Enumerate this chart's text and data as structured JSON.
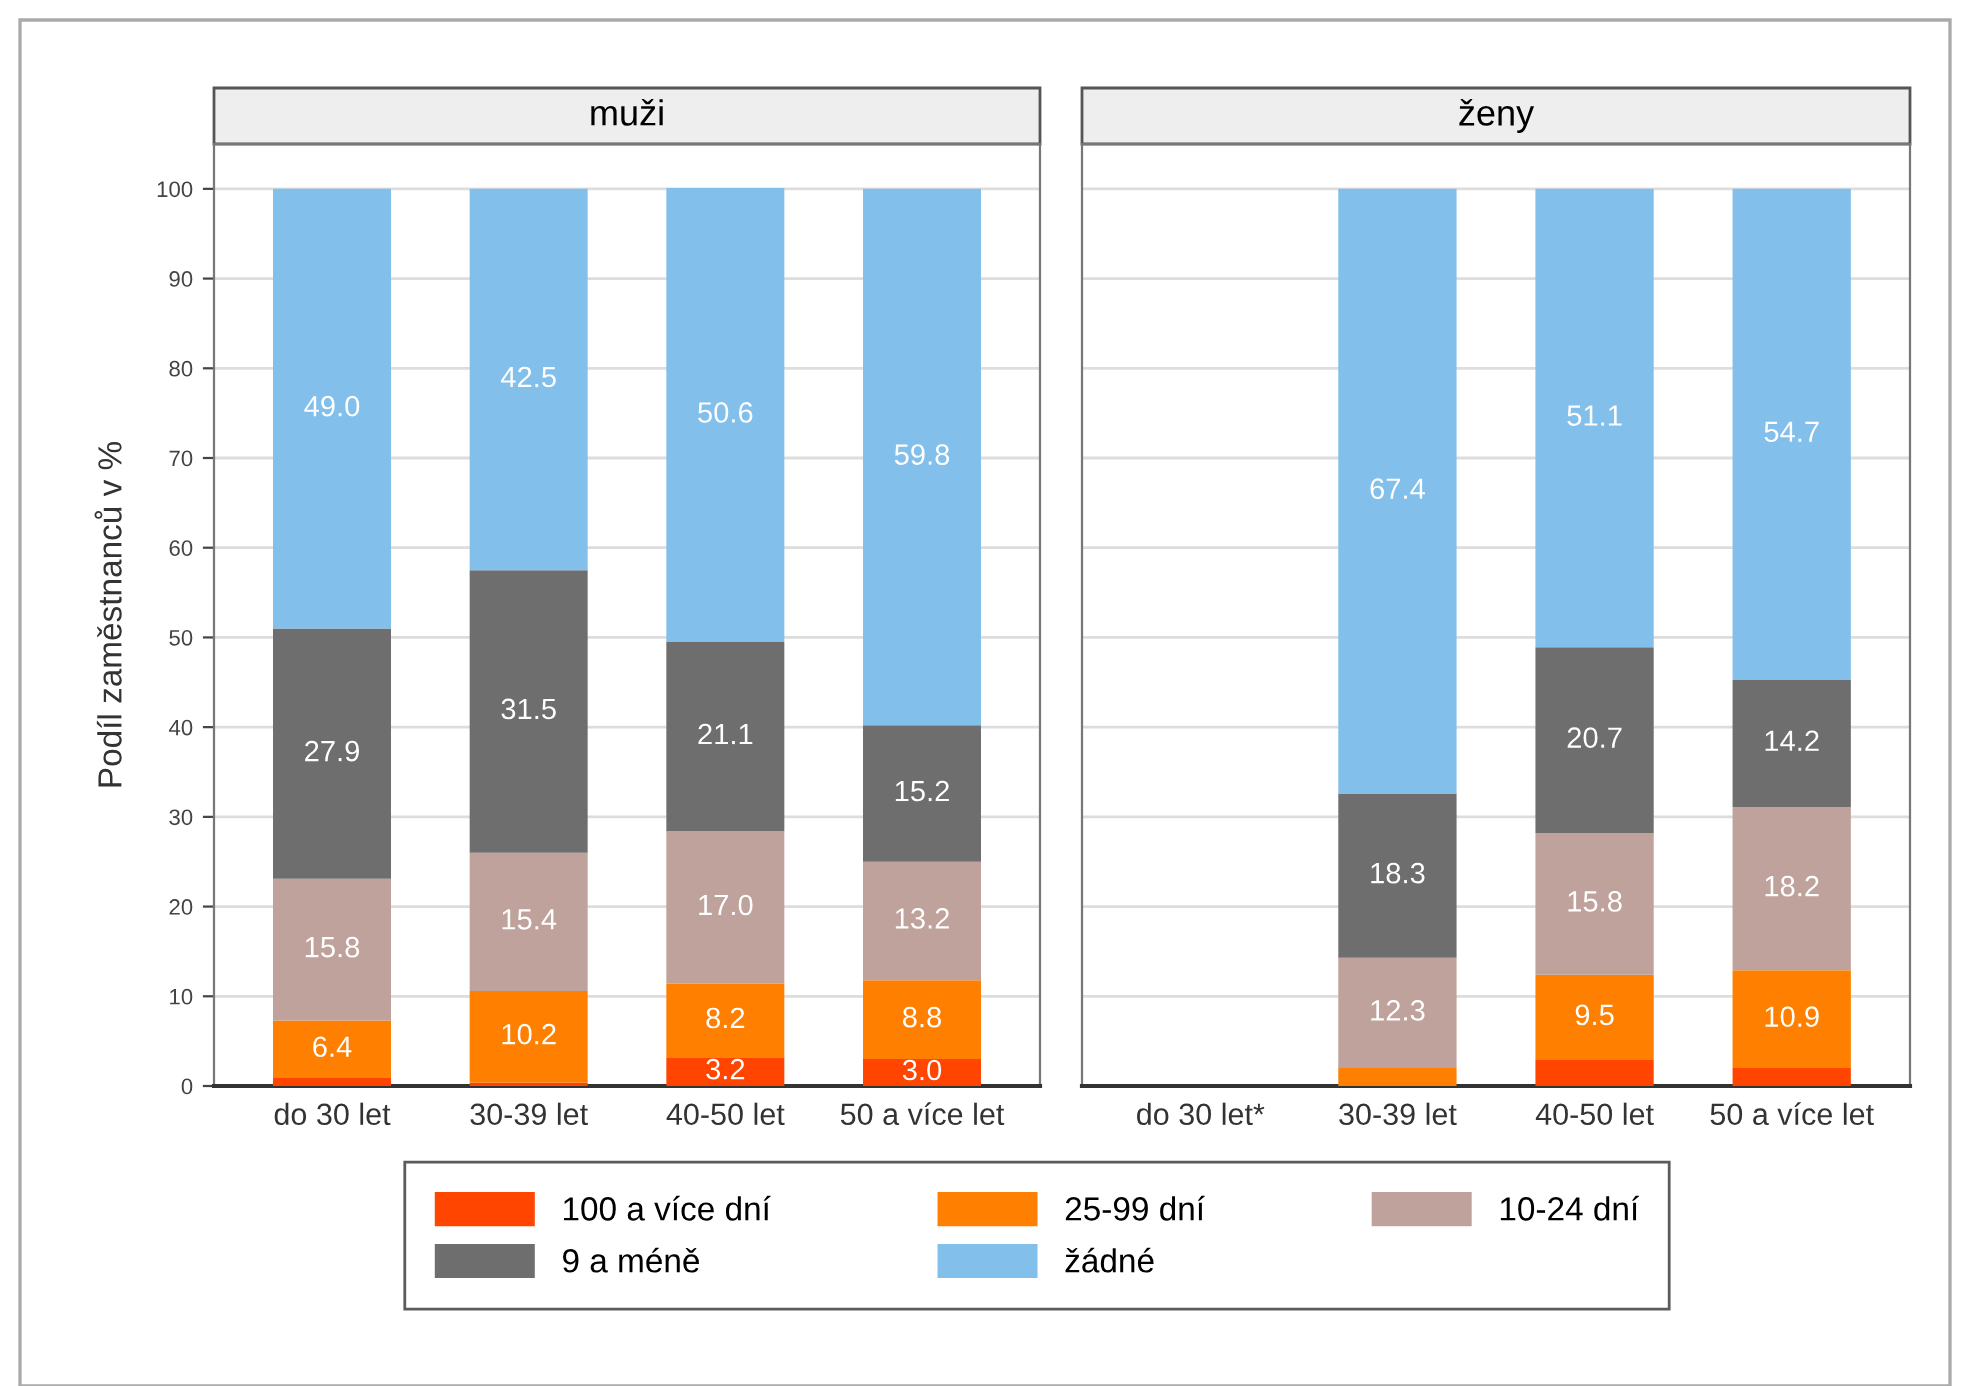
{
  "chart_data": [
    {
      "type": "bar",
      "stacked": true,
      "title": "muži",
      "ylabel": "Podíl zaměstnanců v %",
      "categories": [
        "do 30 let",
        "30-39 let",
        "40-50 let",
        "50 a více let"
      ],
      "ylim": [
        0,
        105
      ],
      "yticks": [
        0,
        10,
        20,
        30,
        40,
        50,
        60,
        70,
        80,
        90,
        100
      ],
      "grid": "y",
      "legend": "bottom",
      "series": [
        {
          "name": "100 a více dní",
          "color": "#ff4500",
          "values": [
            0.9,
            0.4,
            3.2,
            3.0
          ],
          "value_labels": [
            null,
            null,
            "3.2",
            "3.0"
          ]
        },
        {
          "name": "25-99 dní",
          "color": "#ff8000",
          "values": [
            6.4,
            10.2,
            8.2,
            8.8
          ],
          "value_labels": [
            "6.4",
            "10.2",
            "8.2",
            "8.8"
          ]
        },
        {
          "name": "10-24 dní",
          "color": "#bfa29b",
          "values": [
            15.8,
            15.4,
            17.0,
            13.2
          ],
          "value_labels": [
            "15.8",
            "15.4",
            "17.0",
            "13.2"
          ]
        },
        {
          "name": "9 a méně",
          "color": "#6e6e6e",
          "values": [
            27.9,
            31.5,
            21.1,
            15.2
          ],
          "value_labels": [
            "27.9",
            "31.5",
            "21.1",
            "15.2"
          ]
        },
        {
          "name": "žádné",
          "color": "#82bfea",
          "values": [
            49.0,
            42.5,
            50.6,
            59.8
          ],
          "value_labels": [
            "49.0",
            "42.5",
            "50.6",
            "59.8"
          ]
        }
      ]
    },
    {
      "type": "bar",
      "stacked": true,
      "title": "ženy",
      "categories": [
        "do 30 let*",
        "30-39 let",
        "40-50 let",
        "50 a více let"
      ],
      "ylim": [
        0,
        105
      ],
      "yticks": [
        0,
        10,
        20,
        30,
        40,
        50,
        60,
        70,
        80,
        90,
        100
      ],
      "grid": "y",
      "tick_labels": "x",
      "series": [
        {
          "color": "#ff4500",
          "values": [
            null,
            null,
            2.9,
            2.0
          ],
          "value_labels": [
            null,
            null,
            null,
            null
          ]
        },
        {
          "color": "#ff8000",
          "values": [
            null,
            2.0,
            9.5,
            10.9
          ],
          "value_labels": [
            null,
            null,
            "9.5",
            "10.9"
          ]
        },
        {
          "color": "#bfa29b",
          "values": [
            null,
            12.3,
            15.8,
            18.2
          ],
          "value_labels": [
            null,
            "12.3",
            "15.8",
            "18.2"
          ]
        },
        {
          "color": "#6e6e6e",
          "values": [
            null,
            18.3,
            20.7,
            14.2
          ],
          "value_labels": [
            null,
            "18.3",
            "20.7",
            "14.2"
          ]
        },
        {
          "color": "#82bfea",
          "values": [
            null,
            67.4,
            51.1,
            54.7
          ],
          "value_labels": [
            null,
            "67.4",
            "51.1",
            "54.7"
          ]
        }
      ]
    }
  ]
}
